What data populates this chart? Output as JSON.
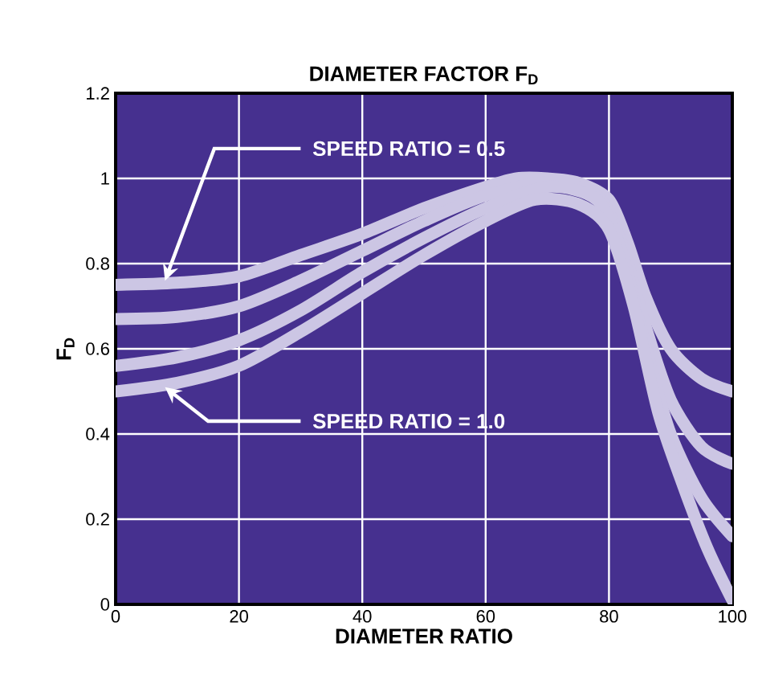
{
  "chart_data": {
    "type": "line",
    "title": "DIAMETER FACTOR F$_{D}$",
    "xlabel": "DIAMETER RATIO",
    "ylabel": "F$_{D}$",
    "xlim": [
      0,
      100
    ],
    "ylim": [
      0,
      1.2
    ],
    "xticks": [
      0,
      20,
      40,
      60,
      80,
      100
    ],
    "yticks": [
      0,
      0.2,
      0.4,
      0.6,
      0.8,
      1,
      1.2
    ],
    "grid": true,
    "series": [
      {
        "color": "#ccc6e4",
        "x": [
          0,
          10,
          20,
          30,
          40,
          50,
          60,
          65,
          70,
          75,
          80,
          83,
          86,
          90,
          95,
          100
        ],
        "values": [
          0.75,
          0.755,
          0.77,
          0.82,
          0.87,
          0.93,
          0.98,
          1.0,
          1.0,
          0.99,
          0.95,
          0.85,
          0.72,
          0.6,
          0.53,
          0.5
        ]
      },
      {
        "color": "#ccc6e4",
        "x": [
          0,
          10,
          20,
          30,
          40,
          50,
          60,
          70,
          78,
          82,
          86,
          90,
          95,
          100
        ],
        "values": [
          0.67,
          0.675,
          0.7,
          0.76,
          0.83,
          0.9,
          0.96,
          0.99,
          0.96,
          0.85,
          0.65,
          0.48,
          0.37,
          0.33
        ]
      },
      {
        "color": "#ccc6e4",
        "x": [
          0,
          10,
          20,
          30,
          40,
          50,
          60,
          70,
          78,
          82,
          86,
          90,
          95,
          100
        ],
        "values": [
          0.56,
          0.58,
          0.62,
          0.69,
          0.78,
          0.86,
          0.93,
          0.98,
          0.95,
          0.83,
          0.6,
          0.4,
          0.25,
          0.16
        ]
      },
      {
        "color": "#ccc6e4",
        "x": [
          0,
          10,
          20,
          30,
          40,
          50,
          60,
          68,
          75,
          80,
          84,
          88,
          92,
          96,
          100
        ],
        "values": [
          0.5,
          0.52,
          0.56,
          0.64,
          0.73,
          0.82,
          0.9,
          0.95,
          0.94,
          0.88,
          0.7,
          0.45,
          0.28,
          0.13,
          0.01
        ]
      }
    ],
    "annotations": [
      {
        "text": "SPEED RATIO = 0.5",
        "x": 8,
        "y": 0.76
      },
      {
        "text": "SPEED RATIO = 1.0",
        "x": 8,
        "y": 0.52
      }
    ]
  }
}
